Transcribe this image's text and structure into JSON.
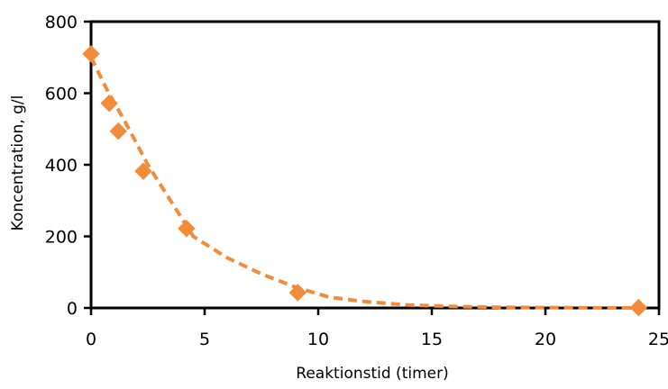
{
  "chart_data": {
    "type": "scatter",
    "title": "",
    "xlabel": "Reaktionstid (timer)",
    "ylabel": "Koncentration, g/l",
    "xlim": [
      0,
      25
    ],
    "ylim": [
      0,
      800
    ],
    "xticks": [
      0,
      5,
      10,
      15,
      20,
      25
    ],
    "yticks": [
      0,
      200,
      400,
      600,
      800
    ],
    "xtick_labels": [
      "0",
      "5",
      "10",
      "15",
      "20",
      "25"
    ],
    "ytick_labels": [
      "0",
      "200",
      "400",
      "600",
      "800"
    ],
    "grid": false,
    "series": [
      {
        "color": "#F28C3A",
        "marker": "diamond",
        "x": [
          0,
          0.8,
          1.2,
          2.3,
          4.2,
          9.1,
          24.1
        ],
        "y": [
          710,
          572,
          494,
          382,
          222,
          43,
          1
        ]
      }
    ],
    "trendline": {
      "color": "#F28C3A",
      "style": "dashed",
      "model": "exponential",
      "x": [
        0,
        0.7,
        1.5,
        2.5,
        3.5,
        4.5,
        6,
        7.5,
        9,
        10.5,
        12,
        14,
        16,
        18,
        20,
        22,
        24.1
      ],
      "y": [
        700,
        610,
        520,
        400,
        300,
        200,
        140,
        95,
        58,
        30,
        18,
        8,
        4,
        2,
        1,
        0.5,
        0.2
      ]
    }
  }
}
